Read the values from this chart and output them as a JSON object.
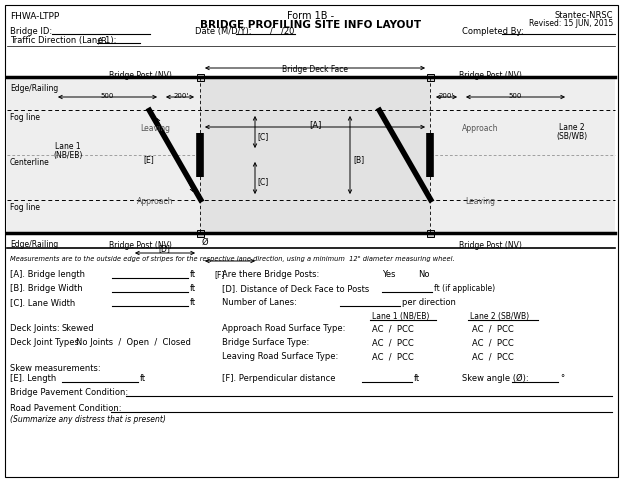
{
  "title_line1": "Form 1B -",
  "title_line2": "BRIDGE PROFILING SITE INFO LAYOUT",
  "top_left": "FHWA-LTPP",
  "top_right_line1": "Stantec-NRSC",
  "top_right_line2": "Revised: 15 JUN, 2015",
  "bridge_id_label": "Bridge ID:",
  "traffic_dir_label": "Traffic Direction (Lane 1):",
  "traffic_dir_value": "/B",
  "date_label": "Date (M/D/Y):",
  "date_sep1": "/",
  "date_sep2": "/20",
  "completed_label": "Completed By:",
  "bg_color": "#ffffff",
  "note_text": "Measurements are to the outside edge of stripes for the respective lane direction, using a minimum  12\" diameter measuring wheel.",
  "fields": [
    "[A]. Bridge length",
    "[B]. Bridge Width",
    "[C]. Lane Width"
  ],
  "field_unit": "ft",
  "right_fields": [
    "Are there Bridge Posts:",
    "[D]. Distance of Deck Face to Posts",
    "Number of Lanes:"
  ],
  "yes_no": [
    "Yes",
    "No"
  ],
  "d_unit": "ft (if applicable)",
  "per_direction": "per direction",
  "lane1_header": "Lane 1 (NB/EB)",
  "lane2_header": "Lane 2 (SB/WB)",
  "deck_joints_label": "Deck Joints:",
  "deck_joints_value": "Skewed",
  "deck_joint_types_label": "Deck Joint Types:",
  "deck_joint_types_value": "No Joints  /  Open  /  Closed",
  "surface_rows": [
    "Approach Road Surface Type:",
    "Bridge Surface Type:",
    "Leaving Road Surface Type:"
  ],
  "ac_pcc": "AC  /  PCC",
  "skew_label": "Skew measurements:",
  "skew_e_label": "[E]. Length",
  "skew_f_label": "[F]. Perpendicular distance",
  "skew_angle_label": "Skew angle (Ø):",
  "skew_angle_unit": "°",
  "bridge_pave_label": "Bridge Pavement Condition:",
  "road_pave_label": "Road Pavement Condition:",
  "road_pave_note": "(Summarize any distress that is present)"
}
